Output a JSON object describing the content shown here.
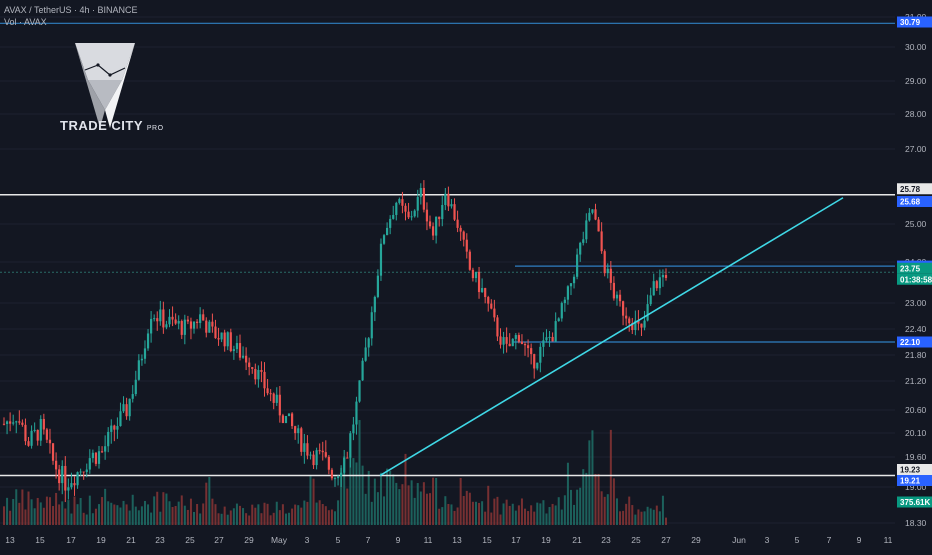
{
  "header": {
    "title": "AVAX / TetherUS · 4h · BINANCE",
    "indicator": "Vol · AVAX"
  },
  "logo": {
    "name": "TRADE CITY",
    "suffix": "PRO"
  },
  "colors": {
    "background": "#131722",
    "up": "#26a69a",
    "down": "#ef5350",
    "trendline": "#3fd8e6",
    "level_white": "#e8e8e8",
    "level_blue": "#2f7fc1",
    "price_label": "#089981"
  },
  "chart_data": {
    "type": "candlestick",
    "ylim": [
      18.3,
      31.0
    ],
    "y_ticks": [
      "31.00",
      "30.00",
      "29.00",
      "28.00",
      "27.00",
      "25.00",
      "24.00",
      "23.00",
      "22.40",
      "21.80",
      "21.20",
      "20.60",
      "20.10",
      "19.60",
      "19.00",
      "18.30"
    ],
    "x_ticks": [
      "13",
      "15",
      "17",
      "19",
      "21",
      "23",
      "25",
      "27",
      "29",
      "May",
      "3",
      "5",
      "7",
      "9",
      "11",
      "13",
      "15",
      "17",
      "19",
      "21",
      "23",
      "25",
      "27",
      "29",
      "Jun",
      "3",
      "5",
      "7",
      "9",
      "11"
    ],
    "price_labels": [
      {
        "value": 30.79,
        "label": "30.79",
        "style": "blue"
      },
      {
        "value": 25.78,
        "label": "25.78",
        "style": "white"
      },
      {
        "value": 25.68,
        "label": "25.68",
        "style": "blue"
      },
      {
        "value": 23.9,
        "label": "23.90",
        "style": "blue"
      },
      {
        "value": 23.75,
        "label": "23.75",
        "style": "green"
      },
      {
        "value": 23.75,
        "label": "01:38:58",
        "style": "green-sub"
      },
      {
        "value": 22.1,
        "label": "22.10",
        "style": "blue"
      },
      {
        "value": 19.23,
        "label": "19.23",
        "style": "white"
      },
      {
        "value": 19.21,
        "label": "19.21",
        "style": "blue"
      },
      {
        "value": 18.62,
        "label": "375.61K",
        "style": "green"
      }
    ],
    "levels": [
      {
        "value": 30.79,
        "color": "blue",
        "x_range": [
          "13",
          "end"
        ]
      },
      {
        "value": 25.78,
        "color": "white",
        "x_range": [
          "13",
          "end"
        ]
      },
      {
        "value": 23.75,
        "color": "dashed",
        "x_range": [
          "13",
          "end"
        ]
      },
      {
        "value": 19.23,
        "color": "white",
        "x_range": [
          "13",
          "end"
        ]
      },
      {
        "value": 23.9,
        "color": "blue",
        "x_range": [
          "15b",
          "end"
        ]
      },
      {
        "value": 22.1,
        "color": "blue",
        "x_range": [
          "17b",
          "end"
        ]
      }
    ],
    "trendline": {
      "from": {
        "x": "7",
        "y": 19.23
      },
      "to": {
        "x": "7b",
        "y": 25.7
      }
    },
    "price_path": [
      [
        0,
        20.3
      ],
      [
        4,
        20.5
      ],
      [
        8,
        19.9
      ],
      [
        12,
        20.2
      ],
      [
        16,
        19.5
      ],
      [
        20,
        19.1
      ],
      [
        24,
        19.3
      ],
      [
        28,
        19.6
      ],
      [
        32,
        19.7
      ],
      [
        36,
        20.2
      ],
      [
        40,
        20.6
      ],
      [
        44,
        21.5
      ],
      [
        48,
        22.8
      ],
      [
        52,
        22.6
      ],
      [
        56,
        22.5
      ],
      [
        60,
        22.4
      ],
      [
        64,
        22.7
      ],
      [
        68,
        22.3
      ],
      [
        72,
        22.2
      ],
      [
        76,
        21.9
      ],
      [
        80,
        21.7
      ],
      [
        84,
        21.2
      ],
      [
        88,
        20.8
      ],
      [
        92,
        20.4
      ],
      [
        96,
        20.0
      ],
      [
        100,
        19.7
      ],
      [
        104,
        19.55
      ],
      [
        108,
        19.25
      ],
      [
        112,
        19.7
      ],
      [
        116,
        21.0
      ],
      [
        120,
        22.8
      ],
      [
        124,
        24.8
      ],
      [
        128,
        25.6
      ],
      [
        132,
        25.1
      ],
      [
        136,
        25.8
      ],
      [
        140,
        24.7
      ],
      [
        144,
        25.9
      ],
      [
        148,
        25.0
      ],
      [
        152,
        23.8
      ],
      [
        156,
        23.3
      ],
      [
        160,
        22.5
      ],
      [
        164,
        21.9
      ],
      [
        168,
        22.3
      ],
      [
        172,
        21.6
      ],
      [
        176,
        22.0
      ],
      [
        180,
        22.4
      ],
      [
        184,
        23.2
      ],
      [
        188,
        24.4
      ],
      [
        192,
        25.4
      ],
      [
        196,
        23.9
      ],
      [
        200,
        23.0
      ],
      [
        204,
        22.7
      ],
      [
        208,
        22.3
      ],
      [
        212,
        23.4
      ],
      [
        216,
        23.75
      ]
    ],
    "volume_profile": [
      [
        0,
        3.1
      ],
      [
        12,
        2.8
      ],
      [
        24,
        2.6
      ],
      [
        36,
        2.4
      ],
      [
        48,
        2.9
      ],
      [
        60,
        2.5
      ],
      [
        72,
        2.2
      ],
      [
        84,
        2.0
      ],
      [
        96,
        2.1
      ],
      [
        108,
        2.5
      ],
      [
        112,
        7.2
      ],
      [
        120,
        4.8
      ],
      [
        124,
        5.2
      ],
      [
        132,
        3.9
      ],
      [
        136,
        4.5
      ],
      [
        144,
        3.6
      ],
      [
        148,
        3.2
      ],
      [
        156,
        2.6
      ],
      [
        168,
        2.4
      ],
      [
        176,
        2.1
      ],
      [
        184,
        2.9
      ],
      [
        188,
        3.6
      ],
      [
        192,
        8.8
      ],
      [
        196,
        6.2
      ],
      [
        200,
        3.1
      ],
      [
        208,
        1.8
      ],
      [
        216,
        1.5
      ]
    ]
  }
}
